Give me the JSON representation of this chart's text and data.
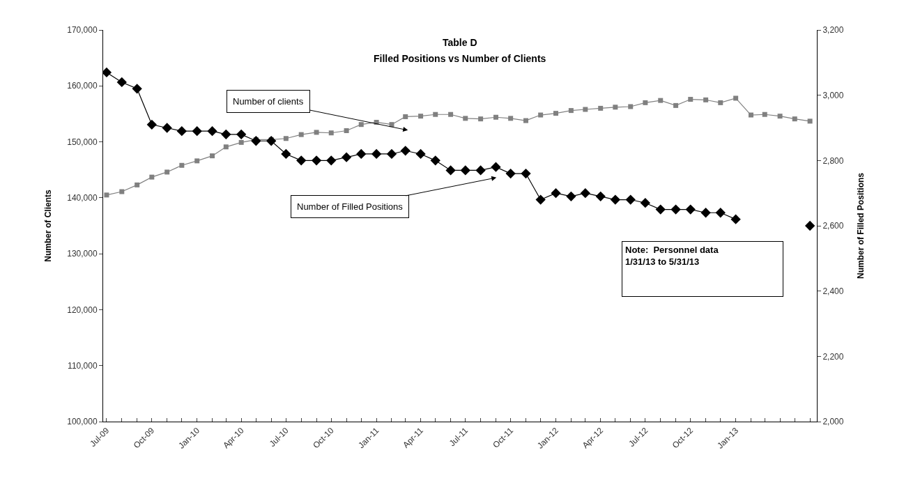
{
  "chart_data": {
    "type": "line",
    "title": "Table D",
    "subtitle": "Filled Positions vs Number of Clients",
    "ylabel": "Number of Clients",
    "y2label": "Number of Filled Positions",
    "x": [
      "2009-07",
      "2009-08",
      "2009-09",
      "2009-10",
      "2009-11",
      "2009-12",
      "2010-01",
      "2010-02",
      "2010-03",
      "2010-04",
      "2010-05",
      "2010-06",
      "2010-07",
      "2010-08",
      "2010-09",
      "2010-10",
      "2010-11",
      "2010-12",
      "2011-01",
      "2011-02",
      "2011-03",
      "2011-04",
      "2011-05",
      "2011-06",
      "2011-07",
      "2011-08",
      "2011-09",
      "2011-10",
      "2011-11",
      "2011-12",
      "2012-01",
      "2012-02",
      "2012-03",
      "2012-04",
      "2012-05",
      "2012-06",
      "2012-07",
      "2012-08",
      "2012-09",
      "2012-10",
      "2012-11",
      "2012-12",
      "2013-01",
      "2013-02",
      "2013-03",
      "2013-04",
      "2013-05",
      "2013-06"
    ],
    "series": [
      {
        "name": "Number of clients",
        "color": "#808080",
        "marker": "square",
        "values": [
          140500,
          141100,
          142300,
          143700,
          144600,
          145800,
          146600,
          147500,
          149100,
          149900,
          150400,
          150400,
          150600,
          151300,
          151700,
          151600,
          152000,
          153100,
          153500,
          153100,
          154500,
          154600,
          154900,
          154900,
          154200,
          154100,
          154400,
          154200,
          153800,
          154800,
          155100,
          155600,
          155800,
          156000,
          156200,
          156300,
          157000,
          157400,
          156500,
          157600,
          157500,
          157000,
          157800,
          154800,
          154900,
          154600,
          154100,
          153700
        ]
      },
      {
        "name": "Number of Filled Positions",
        "color": "#000000",
        "marker": "diamond",
        "axis": "y2",
        "values": [
          3070,
          3040,
          3020,
          2910,
          2900,
          2890,
          2890,
          2890,
          2880,
          2880,
          2860,
          2860,
          2820,
          2800,
          2800,
          2800,
          2810,
          2820,
          2820,
          2820,
          2830,
          2820,
          2800,
          2770,
          2770,
          2770,
          2780,
          2760,
          2760,
          2680,
          2700,
          2690,
          2700,
          2690,
          2680,
          2680,
          2670,
          2650,
          2650,
          2650,
          2640,
          2640,
          2620,
          null,
          null,
          null,
          null,
          2600
        ]
      }
    ],
    "xlim": [
      "2009-06-24",
      "2013-06-15"
    ],
    "xticks": [
      {
        "value": "2009-07",
        "label": "Jul-09"
      },
      {
        "value": "2009-08",
        "label": null
      },
      {
        "value": "2009-09",
        "label": null
      },
      {
        "value": "2009-10",
        "label": "Oct-09"
      },
      {
        "value": "2009-11",
        "label": null
      },
      {
        "value": "2009-12",
        "label": null
      },
      {
        "value": "2010-01",
        "label": "Jan-10"
      },
      {
        "value": "2010-02",
        "label": null
      },
      {
        "value": "2010-03",
        "label": null
      },
      {
        "value": "2010-04",
        "label": "Apr-10"
      },
      {
        "value": "2010-05",
        "label": null
      },
      {
        "value": "2010-06",
        "label": null
      },
      {
        "value": "2010-07",
        "label": "Jul-10"
      },
      {
        "value": "2010-08",
        "label": null
      },
      {
        "value": "2010-09",
        "label": null
      },
      {
        "value": "2010-10",
        "label": "Oct-10"
      },
      {
        "value": "2010-11",
        "label": null
      },
      {
        "value": "2010-12",
        "label": null
      },
      {
        "value": "2011-01",
        "label": "Jan-11"
      },
      {
        "value": "2011-02",
        "label": null
      },
      {
        "value": "2011-03",
        "label": null
      },
      {
        "value": "2011-04",
        "label": "Apr-11"
      },
      {
        "value": "2011-05",
        "label": null
      },
      {
        "value": "2011-06",
        "label": null
      },
      {
        "value": "2011-07",
        "label": "Jul-11"
      },
      {
        "value": "2011-08",
        "label": null
      },
      {
        "value": "2011-09",
        "label": null
      },
      {
        "value": "2011-10",
        "label": "Oct-11"
      },
      {
        "value": "2011-11",
        "label": null
      },
      {
        "value": "2011-12",
        "label": null
      },
      {
        "value": "2012-01",
        "label": "Jan-12"
      },
      {
        "value": "2012-02",
        "label": null
      },
      {
        "value": "2012-03",
        "label": null
      },
      {
        "value": "2012-04",
        "label": "Apr-12"
      },
      {
        "value": "2012-05",
        "label": null
      },
      {
        "value": "2012-06",
        "label": null
      },
      {
        "value": "2012-07",
        "label": "Jul-12"
      },
      {
        "value": "2012-08",
        "label": null
      },
      {
        "value": "2012-09",
        "label": null
      },
      {
        "value": "2012-10",
        "label": "Oct-12"
      },
      {
        "value": "2012-11",
        "label": null
      },
      {
        "value": "2012-12",
        "label": null
      },
      {
        "value": "2013-01",
        "label": "Jan-13"
      },
      {
        "value": "2013-02",
        "label": null
      },
      {
        "value": "2013-03",
        "label": null
      },
      {
        "value": "2013-04",
        "label": null
      },
      {
        "value": "2013-05",
        "label": null
      },
      {
        "value": "2013-06",
        "label": null
      }
    ],
    "ylim": [
      100000,
      170000
    ],
    "yticks": [
      {
        "value": 100000,
        "label": "100,000"
      },
      {
        "value": 110000,
        "label": "110,000"
      },
      {
        "value": 120000,
        "label": "120,000"
      },
      {
        "value": 130000,
        "label": "130,000"
      },
      {
        "value": 140000,
        "label": "140,000"
      },
      {
        "value": 150000,
        "label": "150,000"
      },
      {
        "value": 160000,
        "label": "160,000"
      },
      {
        "value": 170000,
        "label": "170,000"
      }
    ],
    "y2lim": [
      2000,
      3200
    ],
    "y2ticks": [
      {
        "value": 2000,
        "label": "2,000"
      },
      {
        "value": 2200,
        "label": "2,200"
      },
      {
        "value": 2400,
        "label": "2,400"
      },
      {
        "value": 2600,
        "label": "2,600"
      },
      {
        "value": 2800,
        "label": "2,800"
      },
      {
        "value": 3000,
        "label": "3,000"
      },
      {
        "value": 3200,
        "label": "3,200"
      }
    ],
    "annotations": [
      "Note:  Personnel data\n1/31/13 to 5/31/13"
    ],
    "grid": false,
    "legend": false,
    "line_style": "solid"
  }
}
